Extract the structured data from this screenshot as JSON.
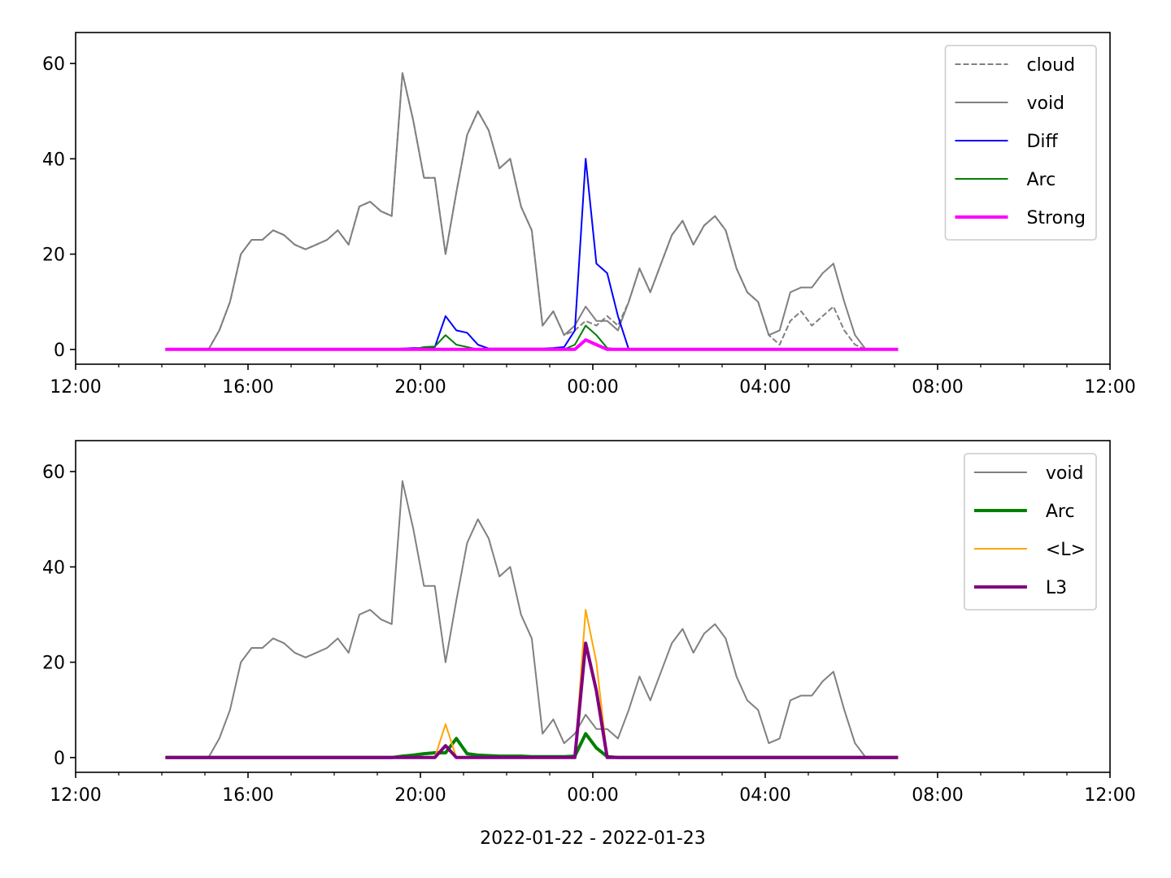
{
  "chart_data": [
    {
      "type": "line",
      "x": [
        "2022-01-22 14:05",
        "2022-01-22 14:20",
        "2022-01-22 14:35",
        "2022-01-22 14:50",
        "2022-01-22 15:05",
        "2022-01-22 15:20",
        "2022-01-22 15:35",
        "2022-01-22 15:50",
        "2022-01-22 16:05",
        "2022-01-22 16:20",
        "2022-01-22 16:35",
        "2022-01-22 16:50",
        "2022-01-22 17:05",
        "2022-01-22 17:20",
        "2022-01-22 17:35",
        "2022-01-22 17:50",
        "2022-01-22 18:05",
        "2022-01-22 18:20",
        "2022-01-22 18:35",
        "2022-01-22 18:50",
        "2022-01-22 19:05",
        "2022-01-22 19:20",
        "2022-01-22 19:35",
        "2022-01-22 19:50",
        "2022-01-22 20:05",
        "2022-01-22 20:20",
        "2022-01-22 20:35",
        "2022-01-22 20:50",
        "2022-01-22 21:05",
        "2022-01-22 21:20",
        "2022-01-22 21:35",
        "2022-01-22 21:50",
        "2022-01-22 22:05",
        "2022-01-22 22:20",
        "2022-01-22 22:35",
        "2022-01-22 22:50",
        "2022-01-22 23:05",
        "2022-01-22 23:20",
        "2022-01-22 23:35",
        "2022-01-22 23:50",
        "2022-01-23 00:05",
        "2022-01-23 00:20",
        "2022-01-23 00:35",
        "2022-01-23 00:50",
        "2022-01-23 01:05",
        "2022-01-23 01:20",
        "2022-01-23 01:35",
        "2022-01-23 01:50",
        "2022-01-23 02:05",
        "2022-01-23 02:20",
        "2022-01-23 02:35",
        "2022-01-23 02:50",
        "2022-01-23 03:05",
        "2022-01-23 03:20",
        "2022-01-23 03:35",
        "2022-01-23 03:50",
        "2022-01-23 04:05",
        "2022-01-23 04:20",
        "2022-01-23 04:35",
        "2022-01-23 04:50",
        "2022-01-23 05:05",
        "2022-01-23 05:20",
        "2022-01-23 05:35",
        "2022-01-23 05:50",
        "2022-01-23 06:05",
        "2022-01-23 06:20",
        "2022-01-23 06:35",
        "2022-01-23 06:50",
        "2022-01-23 07:05"
      ],
      "series": [
        {
          "name": "cloud",
          "color": "#808080",
          "linestyle": "dashed",
          "linewidth": 2,
          "values": [
            0,
            0,
            0,
            0,
            0,
            4,
            10,
            20,
            23,
            23,
            25,
            24,
            22,
            21,
            22,
            23,
            25,
            22,
            30,
            31,
            29,
            28,
            58,
            48,
            36,
            36,
            20,
            33,
            45,
            50,
            46,
            38,
            40,
            30,
            25,
            5,
            8,
            3,
            4,
            6,
            5,
            7,
            5,
            10,
            17,
            12,
            18,
            24,
            27,
            22,
            26,
            28,
            25,
            17,
            12,
            10,
            3,
            1,
            6,
            8,
            5,
            7,
            9,
            4,
            1,
            0,
            0,
            0,
            0
          ]
        },
        {
          "name": "void",
          "color": "#808080",
          "linestyle": "solid",
          "linewidth": 2,
          "values": [
            0,
            0,
            0,
            0,
            0,
            4,
            10,
            20,
            23,
            23,
            25,
            24,
            22,
            21,
            22,
            23,
            25,
            22,
            30,
            31,
            29,
            28,
            58,
            48,
            36,
            36,
            20,
            33,
            45,
            50,
            46,
            38,
            40,
            30,
            25,
            5,
            8,
            3,
            5,
            9,
            6,
            6,
            4,
            10,
            17,
            12,
            18,
            24,
            27,
            22,
            26,
            28,
            25,
            17,
            12,
            10,
            3,
            4,
            12,
            13,
            13,
            16,
            18,
            10,
            3,
            0,
            0,
            0,
            0
          ]
        },
        {
          "name": "Diff",
          "color": "#0000ff",
          "linestyle": "solid",
          "linewidth": 2,
          "values": [
            0,
            0,
            0,
            0,
            0,
            0,
            0,
            0,
            0,
            0,
            0,
            0,
            0,
            0,
            0,
            0,
            0,
            0,
            0,
            0,
            0,
            0,
            0.2,
            0.3,
            0.3,
            0.5,
            7,
            4,
            3.5,
            1,
            0.2,
            0.2,
            0.2,
            0.2,
            0.2,
            0.2,
            0.3,
            0.5,
            4,
            40,
            18,
            16,
            7,
            0,
            0,
            0,
            0,
            0,
            0,
            0,
            0,
            0,
            0,
            0,
            0,
            0,
            0,
            0,
            0,
            0,
            0,
            0,
            0,
            0,
            0,
            0,
            0,
            0,
            0
          ]
        },
        {
          "name": "Arc",
          "color": "#008000",
          "linestyle": "solid",
          "linewidth": 2,
          "values": [
            0,
            0,
            0,
            0,
            0,
            0,
            0,
            0,
            0,
            0,
            0,
            0,
            0,
            0,
            0,
            0,
            0,
            0,
            0,
            0,
            0,
            0,
            0,
            0,
            0.5,
            0.6,
            3,
            1,
            0.5,
            0,
            0,
            0,
            0,
            0,
            0,
            0,
            0,
            0,
            1,
            5,
            3,
            0.3,
            0,
            0,
            0,
            0,
            0,
            0,
            0,
            0,
            0,
            0,
            0,
            0,
            0,
            0,
            0,
            0,
            0,
            0,
            0,
            0,
            0,
            0,
            0,
            0,
            0,
            0,
            0
          ]
        },
        {
          "name": "Strong",
          "color": "#ff00ff",
          "linestyle": "solid",
          "linewidth": 4,
          "values": [
            0,
            0,
            0,
            0,
            0,
            0,
            0,
            0,
            0,
            0,
            0,
            0,
            0,
            0,
            0,
            0,
            0,
            0,
            0,
            0,
            0,
            0,
            0,
            0,
            0,
            0,
            0,
            0,
            0,
            0,
            0,
            0,
            0,
            0,
            0,
            0,
            0,
            0,
            0,
            2,
            1,
            0,
            0,
            0,
            0,
            0,
            0,
            0,
            0,
            0,
            0,
            0,
            0,
            0,
            0,
            0,
            0,
            0,
            0,
            0,
            0,
            0,
            0,
            0,
            0,
            0,
            0,
            0,
            0
          ]
        }
      ],
      "xlim": [
        "2022-01-22 12:00",
        "2022-01-23 12:00"
      ],
      "xticks": [
        {
          "value": "2022-01-22 12:00",
          "label": "12:00"
        },
        {
          "value": "2022-01-22 16:00",
          "label": "16:00"
        },
        {
          "value": "2022-01-22 20:00",
          "label": "20:00"
        },
        {
          "value": "2022-01-23 00:00",
          "label": "00:00"
        },
        {
          "value": "2022-01-23 04:00",
          "label": "04:00"
        },
        {
          "value": "2022-01-23 08:00",
          "label": "08:00"
        },
        {
          "value": "2022-01-23 12:00",
          "label": "12:00"
        }
      ],
      "xminorticks": [
        "2022-01-22 13:00",
        "2022-01-22 14:00",
        "2022-01-22 15:00",
        "2022-01-22 17:00",
        "2022-01-22 18:00",
        "2022-01-22 19:00",
        "2022-01-22 21:00",
        "2022-01-22 22:00",
        "2022-01-22 23:00",
        "2022-01-23 01:00",
        "2022-01-23 02:00",
        "2022-01-23 03:00",
        "2022-01-23 05:00",
        "2022-01-23 06:00",
        "2022-01-23 07:00",
        "2022-01-23 09:00",
        "2022-01-23 10:00",
        "2022-01-23 11:00"
      ],
      "ylim": [
        -3.1,
        66.5
      ],
      "yticks": [
        0,
        20,
        40,
        60
      ],
      "legend": "upper right"
    },
    {
      "type": "line",
      "x": [
        "2022-01-22 14:05",
        "2022-01-22 14:20",
        "2022-01-22 14:35",
        "2022-01-22 14:50",
        "2022-01-22 15:05",
        "2022-01-22 15:20",
        "2022-01-22 15:35",
        "2022-01-22 15:50",
        "2022-01-22 16:05",
        "2022-01-22 16:20",
        "2022-01-22 16:35",
        "2022-01-22 16:50",
        "2022-01-22 17:05",
        "2022-01-22 17:20",
        "2022-01-22 17:35",
        "2022-01-22 17:50",
        "2022-01-22 18:05",
        "2022-01-22 18:20",
        "2022-01-22 18:35",
        "2022-01-22 18:50",
        "2022-01-22 19:05",
        "2022-01-22 19:20",
        "2022-01-22 19:35",
        "2022-01-22 19:50",
        "2022-01-22 20:05",
        "2022-01-22 20:20",
        "2022-01-22 20:35",
        "2022-01-22 20:50",
        "2022-01-22 21:05",
        "2022-01-22 21:20",
        "2022-01-22 21:35",
        "2022-01-22 21:50",
        "2022-01-22 22:05",
        "2022-01-22 22:20",
        "2022-01-22 22:35",
        "2022-01-22 22:50",
        "2022-01-22 23:05",
        "2022-01-22 23:20",
        "2022-01-22 23:35",
        "2022-01-22 23:50",
        "2022-01-23 00:05",
        "2022-01-23 00:20",
        "2022-01-23 00:35",
        "2022-01-23 00:50",
        "2022-01-23 01:05",
        "2022-01-23 01:20",
        "2022-01-23 01:35",
        "2022-01-23 01:50",
        "2022-01-23 02:05",
        "2022-01-23 02:20",
        "2022-01-23 02:35",
        "2022-01-23 02:50",
        "2022-01-23 03:05",
        "2022-01-23 03:20",
        "2022-01-23 03:35",
        "2022-01-23 03:50",
        "2022-01-23 04:05",
        "2022-01-23 04:20",
        "2022-01-23 04:35",
        "2022-01-23 04:50",
        "2022-01-23 05:05",
        "2022-01-23 05:20",
        "2022-01-23 05:35",
        "2022-01-23 05:50",
        "2022-01-23 06:05",
        "2022-01-23 06:20",
        "2022-01-23 06:35",
        "2022-01-23 06:50",
        "2022-01-23 07:05"
      ],
      "series": [
        {
          "name": "void",
          "color": "#808080",
          "linestyle": "solid",
          "linewidth": 2,
          "values": [
            0,
            0,
            0,
            0,
            0,
            4,
            10,
            20,
            23,
            23,
            25,
            24,
            22,
            21,
            22,
            23,
            25,
            22,
            30,
            31,
            29,
            28,
            58,
            48,
            36,
            36,
            20,
            33,
            45,
            50,
            46,
            38,
            40,
            30,
            25,
            5,
            8,
            3,
            5,
            9,
            6,
            6,
            4,
            10,
            17,
            12,
            18,
            24,
            27,
            22,
            26,
            28,
            25,
            17,
            12,
            10,
            3,
            4,
            12,
            13,
            13,
            16,
            18,
            10,
            3,
            0,
            0,
            0,
            0
          ]
        },
        {
          "name": "Arc",
          "color": "#008000",
          "linestyle": "solid",
          "linewidth": 4,
          "values": [
            0,
            0,
            0,
            0,
            0,
            0,
            0,
            0,
            0,
            0,
            0,
            0,
            0,
            0,
            0,
            0,
            0,
            0,
            0,
            0,
            0,
            0,
            0.3,
            0.5,
            0.8,
            1,
            1,
            4,
            0.8,
            0.5,
            0.4,
            0.3,
            0.3,
            0.3,
            0.2,
            0.2,
            0.2,
            0.2,
            0.3,
            5,
            2,
            0.2,
            0,
            0,
            0,
            0,
            0,
            0,
            0,
            0,
            0,
            0,
            0,
            0,
            0,
            0,
            0,
            0,
            0,
            0,
            0,
            0,
            0,
            0,
            0,
            0,
            0,
            0,
            0
          ]
        },
        {
          "name": "<L>",
          "color": "#ffa500",
          "linestyle": "solid",
          "linewidth": 2,
          "values": [
            0,
            0,
            0,
            0,
            0,
            0,
            0,
            0,
            0,
            0,
            0,
            0,
            0,
            0,
            0,
            0,
            0,
            0,
            0,
            0,
            0,
            0,
            0,
            0,
            0,
            0,
            7,
            0,
            0,
            0,
            0,
            0,
            0,
            0,
            0,
            0,
            0,
            0,
            0,
            31,
            20,
            0,
            0,
            0,
            0,
            0,
            0,
            0,
            0,
            0,
            0,
            0,
            0,
            0,
            0,
            0,
            0,
            0,
            0,
            0,
            0,
            0,
            0,
            0,
            0,
            0,
            0,
            0,
            0
          ]
        },
        {
          "name": "L3",
          "color": "#800080",
          "linestyle": "solid",
          "linewidth": 4,
          "values": [
            0,
            0,
            0,
            0,
            0,
            0,
            0,
            0,
            0,
            0,
            0,
            0,
            0,
            0,
            0,
            0,
            0,
            0,
            0,
            0,
            0,
            0,
            0,
            0,
            0,
            0,
            2.5,
            0,
            0,
            0,
            0,
            0,
            0,
            0,
            0,
            0,
            0,
            0,
            0,
            24,
            14,
            0,
            0,
            0,
            0,
            0,
            0,
            0,
            0,
            0,
            0,
            0,
            0,
            0,
            0,
            0,
            0,
            0,
            0,
            0,
            0,
            0,
            0,
            0,
            0,
            0,
            0,
            0,
            0
          ]
        }
      ],
      "xlim": [
        "2022-01-22 12:00",
        "2022-01-23 12:00"
      ],
      "xticks": [
        {
          "value": "2022-01-22 12:00",
          "label": "12:00"
        },
        {
          "value": "2022-01-22 16:00",
          "label": "16:00"
        },
        {
          "value": "2022-01-22 20:00",
          "label": "20:00"
        },
        {
          "value": "2022-01-23 00:00",
          "label": "00:00"
        },
        {
          "value": "2022-01-23 04:00",
          "label": "04:00"
        },
        {
          "value": "2022-01-23 08:00",
          "label": "08:00"
        },
        {
          "value": "2022-01-23 12:00",
          "label": "12:00"
        }
      ],
      "xminorticks": [
        "2022-01-22 13:00",
        "2022-01-22 14:00",
        "2022-01-22 15:00",
        "2022-01-22 17:00",
        "2022-01-22 18:00",
        "2022-01-22 19:00",
        "2022-01-22 21:00",
        "2022-01-22 22:00",
        "2022-01-22 23:00",
        "2022-01-23 01:00",
        "2022-01-23 02:00",
        "2022-01-23 03:00",
        "2022-01-23 05:00",
        "2022-01-23 06:00",
        "2022-01-23 07:00",
        "2022-01-23 09:00",
        "2022-01-23 10:00",
        "2022-01-23 11:00"
      ],
      "ylim": [
        -3.1,
        66.5
      ],
      "yticks": [
        0,
        20,
        40,
        60
      ],
      "legend": "upper right",
      "x_label": "2022-01-22 - 2022-01-23"
    }
  ]
}
